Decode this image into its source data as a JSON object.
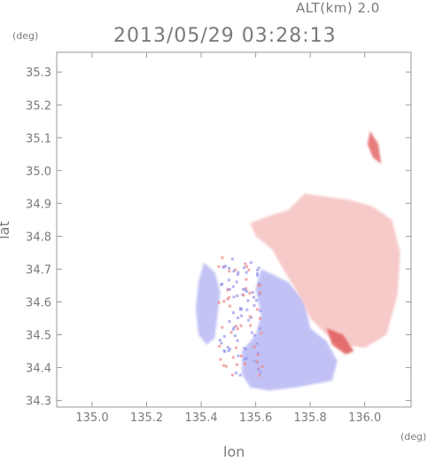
{
  "header": {
    "altitude": "ALT(km) 2.0",
    "timestamp": "2013/05/29 03:28:13"
  },
  "chart_data": {
    "type": "heatmap",
    "title": "2013/05/29 03:28:13",
    "subtitle": "ALT(km) 2.0",
    "xlabel": "lon",
    "ylabel": "lat",
    "x_unit": "(deg)",
    "y_unit": "(deg)",
    "xlim": [
      134.87,
      136.17
    ],
    "ylim": [
      34.28,
      35.36
    ],
    "x_ticks": [
      "135.0",
      "135.2",
      "135.4",
      "135.6",
      "135.8",
      "136.0"
    ],
    "y_ticks": [
      "34.3",
      "34.4",
      "34.5",
      "34.6",
      "34.7",
      "34.8",
      "34.9",
      "35.0",
      "35.1",
      "35.2",
      "35.3"
    ],
    "grid": false,
    "colors": {
      "toward": "#a6a6f2",
      "away": "#f2a6a6",
      "strong_away": "#e05a5a",
      "axis": "#999999"
    },
    "regions": [
      {
        "name": "approaching-main",
        "sign": "negative",
        "intensity": 0.55,
        "polygon": [
          [
            135.62,
            34.7
          ],
          [
            135.72,
            34.66
          ],
          [
            135.78,
            34.6
          ],
          [
            135.8,
            34.52
          ],
          [
            135.86,
            34.48
          ],
          [
            135.9,
            34.42
          ],
          [
            135.88,
            34.36
          ],
          [
            135.75,
            34.34
          ],
          [
            135.65,
            34.33
          ],
          [
            135.58,
            34.34
          ],
          [
            135.55,
            34.38
          ],
          [
            135.55,
            34.45
          ],
          [
            135.6,
            34.5
          ],
          [
            135.62,
            34.56
          ],
          [
            135.6,
            34.64
          ]
        ]
      },
      {
        "name": "approaching-west",
        "sign": "negative",
        "intensity": 0.5,
        "polygon": [
          [
            135.41,
            34.72
          ],
          [
            135.45,
            34.69
          ],
          [
            135.47,
            34.63
          ],
          [
            135.46,
            34.56
          ],
          [
            135.45,
            34.49
          ],
          [
            135.42,
            34.47
          ],
          [
            135.39,
            34.5
          ],
          [
            135.38,
            34.58
          ],
          [
            135.39,
            34.66
          ]
        ]
      },
      {
        "name": "receding-north",
        "sign": "positive",
        "intensity": 0.35,
        "polygon": [
          [
            135.78,
            34.93
          ],
          [
            135.86,
            34.92
          ],
          [
            135.95,
            34.91
          ],
          [
            136.03,
            34.89
          ],
          [
            136.1,
            34.85
          ],
          [
            136.13,
            34.75
          ],
          [
            136.12,
            34.62
          ],
          [
            136.08,
            34.5
          ],
          [
            136.0,
            34.46
          ],
          [
            135.92,
            34.47
          ],
          [
            135.86,
            34.5
          ],
          [
            135.8,
            34.55
          ],
          [
            135.76,
            34.62
          ],
          [
            135.7,
            34.7
          ],
          [
            135.66,
            34.76
          ],
          [
            135.6,
            34.8
          ],
          [
            135.58,
            34.84
          ],
          [
            135.64,
            34.86
          ],
          [
            135.72,
            34.88
          ]
        ]
      },
      {
        "name": "receding-northeast-cell",
        "sign": "positive",
        "intensity": 0.7,
        "polygon": [
          [
            136.02,
            35.12
          ],
          [
            136.05,
            35.08
          ],
          [
            136.06,
            35.02
          ],
          [
            136.03,
            35.04
          ],
          [
            136.01,
            35.08
          ]
        ]
      },
      {
        "name": "receding-band",
        "sign": "positive",
        "intensity": 0.85,
        "polygon": [
          [
            135.86,
            34.52
          ],
          [
            135.92,
            34.5
          ],
          [
            135.96,
            34.45
          ],
          [
            135.93,
            34.44
          ],
          [
            135.88,
            34.47
          ]
        ]
      }
    ]
  }
}
